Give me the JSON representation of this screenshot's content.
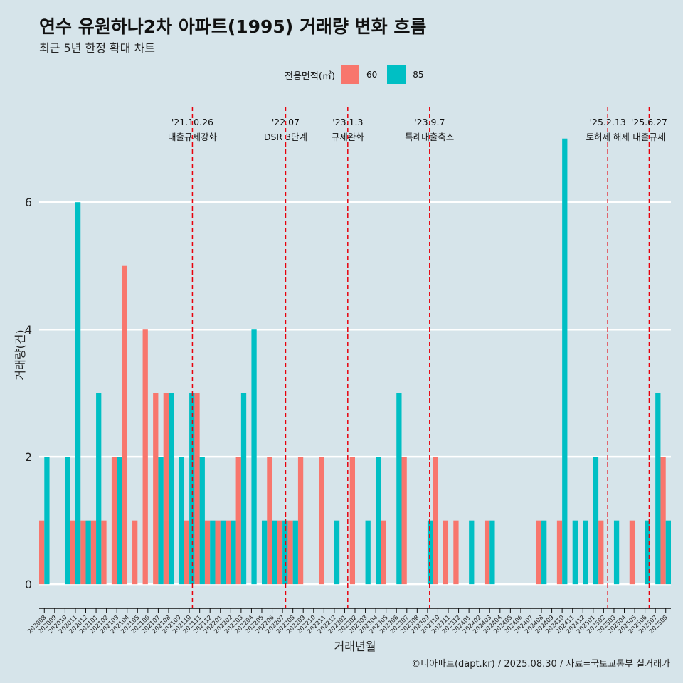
{
  "header": {
    "title": "연수 유원하나2차 아파트(1995) 거래량 변화 흐름",
    "subtitle": "최근 5년 한정 확대 차트"
  },
  "footer": {
    "caption": "©디아파트(dapt.kr) / 2025.08.30 / 자료=국토교통부 실거래가"
  },
  "legend": {
    "title": "전용면적(㎡)",
    "items": [
      {
        "label": "60",
        "color": "#f8766d"
      },
      {
        "label": "85",
        "color": "#00bfc4"
      }
    ]
  },
  "chart_data": {
    "type": "bar",
    "title": "연수 유원하나2차 아파트(1995) 거래량 변화 흐름",
    "subtitle": "최근 5년 한정 확대 차트",
    "xlabel": "거래년월",
    "ylabel": "거래량(건)",
    "ylim": [
      -0.3,
      7.5
    ],
    "yticks": [
      0,
      2,
      4,
      6
    ],
    "grid": true,
    "legend_position": "top",
    "categories": [
      "202008",
      "202009",
      "202010",
      "202011",
      "202012",
      "202101",
      "202102",
      "202103",
      "202104",
      "202105",
      "202106",
      "202107",
      "202108",
      "202109",
      "202110",
      "202111",
      "202112",
      "202201",
      "202202",
      "202203",
      "202204",
      "202205",
      "202206",
      "202207",
      "202208",
      "202209",
      "202210",
      "202211",
      "202212",
      "202301",
      "202302",
      "202303",
      "202304",
      "202305",
      "202306",
      "202307",
      "202308",
      "202309",
      "202310",
      "202311",
      "202312",
      "202401",
      "202402",
      "202403",
      "202404",
      "202405",
      "202406",
      "202407",
      "202408",
      "202409",
      "202410",
      "202411",
      "202412",
      "202501",
      "202502",
      "202503",
      "202504",
      "202505",
      "202506",
      "202507",
      "202508"
    ],
    "tick_labels": [
      "202008",
      "202009",
      "202010",
      "202011",
      "202012",
      "202101",
      "202102",
      "202103",
      "202104",
      "202105",
      "202106",
      "202107",
      "202108",
      "202109",
      "202110",
      "202111",
      "202112",
      "202201",
      "202202",
      "202203",
      "202204",
      "202205",
      "202206",
      "202207",
      "202208",
      "202209",
      "202210",
      "202211",
      "202212",
      "202301",
      "202302",
      "202303",
      "202304",
      "202305",
      "202306",
      "202307",
      "202308",
      "202309",
      "202310",
      "202311",
      "202312",
      "202401",
      "202402",
      "202403",
      "202404",
      "202405",
      "202406",
      "202407",
      "202408",
      "202409",
      "202410",
      "202411",
      "202412",
      "202501",
      "202502",
      "202503",
      "202504",
      "202505",
      "202506",
      "202507",
      "202508"
    ],
    "series": [
      {
        "name": "60",
        "color": "#f8766d",
        "values": [
          1,
          0,
          0,
          1,
          1,
          1,
          1,
          2,
          5,
          1,
          4,
          3,
          3,
          0,
          1,
          3,
          1,
          1,
          1,
          2,
          0,
          0,
          2,
          1,
          1,
          2,
          0,
          2,
          0,
          0,
          2,
          0,
          0,
          1,
          0,
          2,
          0,
          0,
          2,
          1,
          1,
          0,
          0,
          1,
          0,
          0,
          0,
          0,
          1,
          0,
          1,
          0,
          0,
          0,
          1,
          0,
          0,
          1,
          0,
          0,
          2
        ]
      },
      {
        "name": "85",
        "color": "#00bfc4",
        "values": [
          2,
          0,
          2,
          6,
          1,
          3,
          0,
          2,
          0,
          0,
          0,
          2,
          3,
          2,
          3,
          2,
          1,
          1,
          1,
          3,
          4,
          1,
          1,
          1,
          1,
          0,
          0,
          0,
          1,
          0,
          0,
          1,
          2,
          0,
          3,
          0,
          0,
          1,
          0,
          0,
          0,
          1,
          0,
          1,
          0,
          0,
          0,
          0,
          1,
          0,
          7,
          1,
          1,
          2,
          0,
          1,
          0,
          0,
          1,
          3,
          1
        ]
      }
    ],
    "annotations": [
      {
        "date": "'21.10.26",
        "label": "대출규제강화",
        "at": 14.3
      },
      {
        "date": "'22.07",
        "label": "DSR 3단계",
        "at": 23.3
      },
      {
        "date": "'23.1.3",
        "label": "규제완화",
        "at": 29.3
      },
      {
        "date": "'23.9.7",
        "label": "특례대출축소",
        "at": 37.2
      },
      {
        "date": "'25.2.13",
        "label": "토허제 해제",
        "at": 54.4
      },
      {
        "date": "'25.6.27",
        "label": "대출규제",
        "at": 58.4
      }
    ]
  }
}
